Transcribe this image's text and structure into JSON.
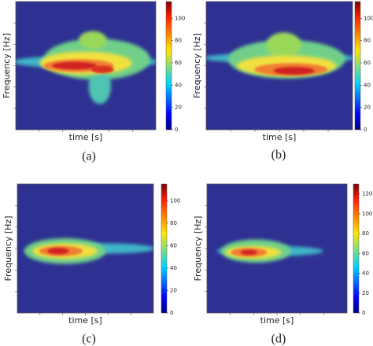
{
  "chart_data": [
    {
      "type": "heatmap",
      "ylabel": "Frequency [Hz]",
      "xlabel": "time [s]",
      "caption": "(a)",
      "clim": [
        0,
        115
      ],
      "cticks": [
        0,
        20,
        40,
        60,
        80,
        100
      ]
    },
    {
      "type": "heatmap",
      "ylabel": "Frequency [Hz]",
      "xlabel": "time [s]",
      "caption": "(b)",
      "clim": [
        0,
        115
      ],
      "cticks": [
        0,
        20,
        40,
        60,
        80,
        100
      ]
    },
    {
      "type": "heatmap",
      "ylabel": "Frequency [Hz]",
      "xlabel": "time [s]",
      "caption": "(c)",
      "clim": [
        0,
        115
      ],
      "cticks": [
        0,
        20,
        40,
        60,
        80,
        100
      ]
    },
    {
      "type": "heatmap",
      "ylabel": "Frequency [Hz]",
      "xlabel": "time [s]",
      "caption": "(d)",
      "clim": [
        0,
        130
      ],
      "cticks": [
        0,
        20,
        40,
        60,
        80,
        100,
        120
      ]
    }
  ]
}
